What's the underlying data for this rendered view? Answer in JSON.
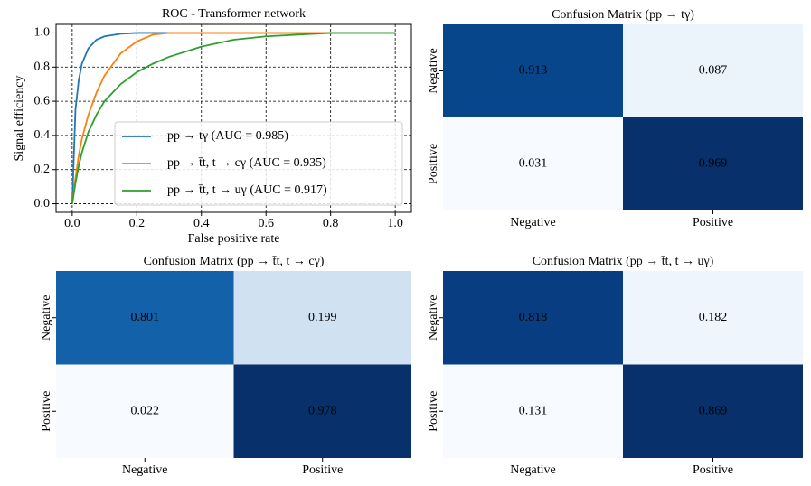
{
  "chart_data": [
    {
      "type": "line",
      "title": "ROC - Transformer network",
      "xlabel": "False positive rate",
      "ylabel": "Signal efficiency",
      "x": [
        0,
        0.01,
        0.02,
        0.03,
        0.05,
        0.075,
        0.1,
        0.15,
        0.2,
        0.25,
        0.3,
        0.4,
        0.5,
        0.6,
        0.8,
        1.0
      ],
      "series": [
        {
          "name": "pp → tγ (AUC = 0.985)",
          "color": "#1f77b4",
          "values": [
            0,
            0.55,
            0.72,
            0.82,
            0.91,
            0.96,
            0.98,
            0.995,
            1,
            1,
            1,
            1,
            1,
            1,
            1,
            1
          ]
        },
        {
          "name": "pp → t̄t, t → cγ (AUC = 0.935)",
          "color": "#ff7f0e",
          "values": [
            0,
            0.15,
            0.28,
            0.38,
            0.52,
            0.65,
            0.75,
            0.88,
            0.95,
            0.99,
            1,
            1,
            1,
            1,
            1,
            1
          ]
        },
        {
          "name": "pp → t̄t, t → uγ (AUC = 0.917)",
          "color": "#2ca02c",
          "values": [
            0,
            0.12,
            0.22,
            0.3,
            0.42,
            0.52,
            0.6,
            0.7,
            0.77,
            0.82,
            0.86,
            0.92,
            0.96,
            0.98,
            1,
            1
          ]
        }
      ],
      "xlim": [
        -0.05,
        1.05
      ],
      "ylim": [
        -0.05,
        1.05
      ],
      "xticks": [
        {
          "value": 0,
          "label": "0.0"
        },
        0.2,
        0.4,
        0.6,
        0.8,
        {
          "value": 1,
          "label": "1.0"
        }
      ],
      "yticks": [
        {
          "value": 0,
          "label": "0.0"
        },
        0.2,
        0.4,
        0.6,
        0.8,
        {
          "value": 1,
          "label": "1.0"
        }
      ],
      "grid": true,
      "legend": "lower right"
    },
    {
      "type": "heatmap",
      "title": "Confusion Matrix (pp → tγ)",
      "x_categories": [
        "Negative",
        "Positive"
      ],
      "y_categories": [
        "Negative",
        "Positive"
      ],
      "values": [
        [
          0.913,
          0.087
        ],
        [
          0.031,
          0.969
        ]
      ],
      "colors": [
        [
          "#08468b",
          "#ebf3fb"
        ],
        [
          "#f7fbff",
          "#08306b"
        ]
      ]
    },
    {
      "type": "heatmap",
      "title": "Confusion Matrix (pp → t̄t, t → cγ)",
      "x_categories": [
        "Negative",
        "Positive"
      ],
      "y_categories": [
        "Negative",
        "Positive"
      ],
      "values": [
        [
          0.801,
          0.199
        ],
        [
          0.022,
          0.978
        ]
      ],
      "colors": [
        [
          "#1361a9",
          "#d0e1f2"
        ],
        [
          "#f7fbff",
          "#08306b"
        ]
      ]
    },
    {
      "type": "heatmap",
      "title": "Confusion Matrix (pp → t̄t, t → uγ)",
      "x_categories": [
        "Negative",
        "Positive"
      ],
      "y_categories": [
        "Negative",
        "Positive"
      ],
      "values": [
        [
          0.818,
          0.182
        ],
        [
          0.131,
          0.869
        ]
      ],
      "colors": [
        [
          "#083e81",
          "#eef5fc"
        ],
        [
          "#f7fbff",
          "#08306b"
        ]
      ]
    }
  ]
}
